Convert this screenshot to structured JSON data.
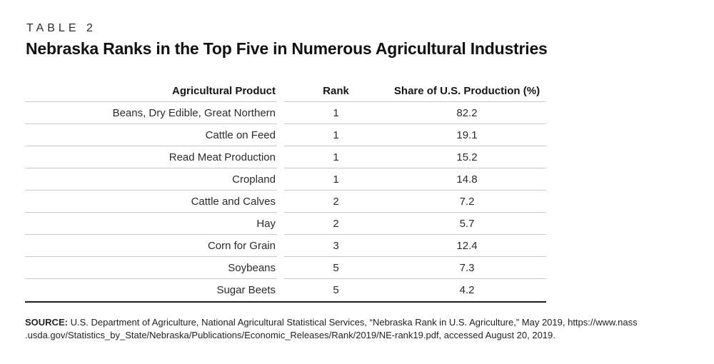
{
  "table": {
    "label": "TABLE 2",
    "title": "Nebraska Ranks in the Top Five in Numerous Agricultural Industries",
    "columns": [
      "Agricultural Product",
      "Rank",
      "Share of U.S. Production (%)"
    ],
    "rows": [
      {
        "product": "Beans, Dry Edible, Great Northern",
        "rank": "1",
        "share": "82.2"
      },
      {
        "product": "Cattle on Feed",
        "rank": "1",
        "share": "19.1"
      },
      {
        "product": "Read Meat Production",
        "rank": "1",
        "share": "15.2"
      },
      {
        "product": "Cropland",
        "rank": "1",
        "share": "14.8"
      },
      {
        "product": "Cattle and Calves",
        "rank": "2",
        "share": "7.2"
      },
      {
        "product": "Hay",
        "rank": "2",
        "share": "5.7"
      },
      {
        "product": "Corn for Grain",
        "rank": "3",
        "share": "12.4"
      },
      {
        "product": "Soybeans",
        "rank": "5",
        "share": "7.3"
      },
      {
        "product": "Sugar Beets",
        "rank": "5",
        "share": "4.2"
      }
    ]
  },
  "source": {
    "label": "SOURCE:",
    "line1": "U.S. Department of Agriculture, National Agricultural Statistical Services, “Nebraska Rank in U.S. Agriculture,” May 2019, https://www.nass",
    "line2": ".usda.gov/Statistics_by_State/Nebraska/Publications/Economic_Releases/Rank/2019/NE-rank19.pdf, accessed August 20, 2019."
  },
  "colors": {
    "text": "#231f20",
    "rule_light": "#c9c9c9",
    "rule_heavy": "#1c1c1c"
  }
}
